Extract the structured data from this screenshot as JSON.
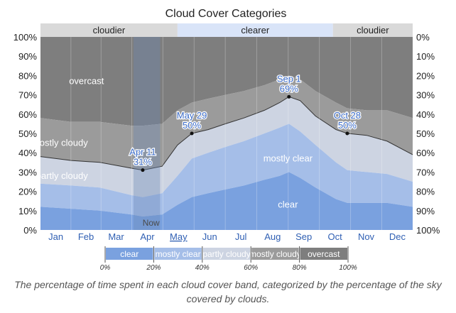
{
  "caption": "The percentage of time spent in each cloud cover band, categorized by the percentage of the sky covered by clouds.",
  "colors": {
    "clear": "#7aa1df",
    "mostly_clear": "#a5bee8",
    "partly_cloudy": "#cdd4e2",
    "mostly_cloudy": "#9b9b9b",
    "overcast": "#7e7e7e",
    "band_cloudier": "#d9d9d9",
    "band_clearer": "#d9e4f8",
    "now_shade": "#6a86b5",
    "annotation_text": "#3b6bc7"
  },
  "chart_data": {
    "type": "area",
    "title": "Cloud Cover Categories",
    "stacked": true,
    "x_unit": "day of year",
    "xlim": [
      1,
      365
    ],
    "ylim": [
      0,
      100
    ],
    "y_ticks_left": [
      "0%",
      "10%",
      "20%",
      "30%",
      "40%",
      "50%",
      "60%",
      "70%",
      "80%",
      "90%",
      "100%"
    ],
    "y_ticks_right": [
      "100%",
      "90%",
      "80%",
      "70%",
      "60%",
      "50%",
      "40%",
      "30%",
      "20%",
      "10%",
      "0%"
    ],
    "month_labels": [
      "Jan",
      "Feb",
      "Mar",
      "Apr",
      "May",
      "Jun",
      "Jul",
      "Aug",
      "Sep",
      "Oct",
      "Nov",
      "Dec"
    ],
    "month_mid_days": [
      16,
      45.5,
      75,
      105.5,
      136,
      166.5,
      197,
      228,
      258.5,
      289,
      319.5,
      350
    ],
    "current_month": "May",
    "day": [
      1,
      31,
      59,
      90,
      101,
      120,
      135,
      149,
      165,
      182,
      200,
      220,
      235,
      244,
      255,
      270,
      290,
      301,
      320,
      340,
      365
    ],
    "series": [
      {
        "name": "clear",
        "color_key": "clear",
        "values": [
          12,
          11,
          10,
          8,
          7,
          8,
          13,
          17,
          19,
          21,
          23,
          26,
          28,
          30,
          27,
          22,
          16,
          14,
          14,
          14,
          12
        ]
      },
      {
        "name": "mostly clear",
        "color_key": "mostly_clear",
        "values": [
          24,
          23,
          22,
          18,
          17,
          19,
          28,
          37,
          40,
          43,
          46,
          50,
          53,
          55,
          51,
          44,
          35,
          31,
          30,
          29,
          25
        ]
      },
      {
        "name": "partly cloudy",
        "color_key": "partly_cloudy",
        "values": [
          38,
          36,
          35,
          32,
          31,
          33,
          44,
          50,
          52,
          55,
          58,
          62,
          66,
          69,
          67,
          59,
          52,
          50,
          49,
          46,
          39
        ]
      },
      {
        "name": "mostly cloudy",
        "color_key": "mostly_cloudy",
        "values": [
          58,
          56,
          56,
          54,
          54,
          55,
          62,
          66,
          68,
          70,
          72,
          75,
          78,
          80,
          78,
          72,
          66,
          63,
          62,
          62,
          58
        ]
      },
      {
        "name": "overcast",
        "color_key": "overcast",
        "values": [
          100,
          100,
          100,
          100,
          100,
          100,
          100,
          100,
          100,
          100,
          100,
          100,
          100,
          100,
          100,
          100,
          100,
          100,
          100,
          100,
          100
        ]
      }
    ],
    "area_labels": [
      {
        "text": "overcast",
        "day": 46,
        "y": 77
      },
      {
        "text": "mostly cloudy",
        "day": 20,
        "y": 45
      },
      {
        "text": "partly cloudy",
        "day": 22,
        "y": 28
      },
      {
        "text": "mostly clear",
        "day": 243,
        "y": 37
      },
      {
        "text": "clear",
        "day": 243,
        "y": 13
      }
    ],
    "annotations": [
      {
        "date": "Apr 11",
        "value": "31%",
        "day": 101,
        "y": 31
      },
      {
        "date": "May 29",
        "value": "50%",
        "day": 149,
        "y": 50
      },
      {
        "date": "Sep 1",
        "value": "69%",
        "day": 244,
        "y": 69
      },
      {
        "date": "Oct 28",
        "value": "50%",
        "day": 301,
        "y": 50
      }
    ],
    "now": {
      "label": "Now",
      "start_day": 92,
      "end_day": 118
    },
    "bands": [
      {
        "label": "cloudier",
        "start_day": 1,
        "end_day": 135,
        "color_key": "band_cloudier"
      },
      {
        "label": "clearer",
        "start_day": 135,
        "end_day": 287,
        "color_key": "band_clearer"
      },
      {
        "label": "cloudier",
        "start_day": 287,
        "end_day": 365,
        "color_key": "band_cloudier"
      }
    ],
    "legend": {
      "placement": "bottom",
      "items": [
        {
          "label": "clear",
          "color_key": "clear"
        },
        {
          "label": "mostly clear",
          "color_key": "mostly_clear"
        },
        {
          "label": "partly cloudy",
          "color_key": "partly_cloudy"
        },
        {
          "label": "mostly cloudy",
          "color_key": "mostly_cloudy"
        },
        {
          "label": "overcast",
          "color_key": "overcast"
        }
      ],
      "scale_ticks": [
        "0%",
        "20%",
        "40%",
        "60%",
        "80%",
        "100%"
      ]
    }
  }
}
